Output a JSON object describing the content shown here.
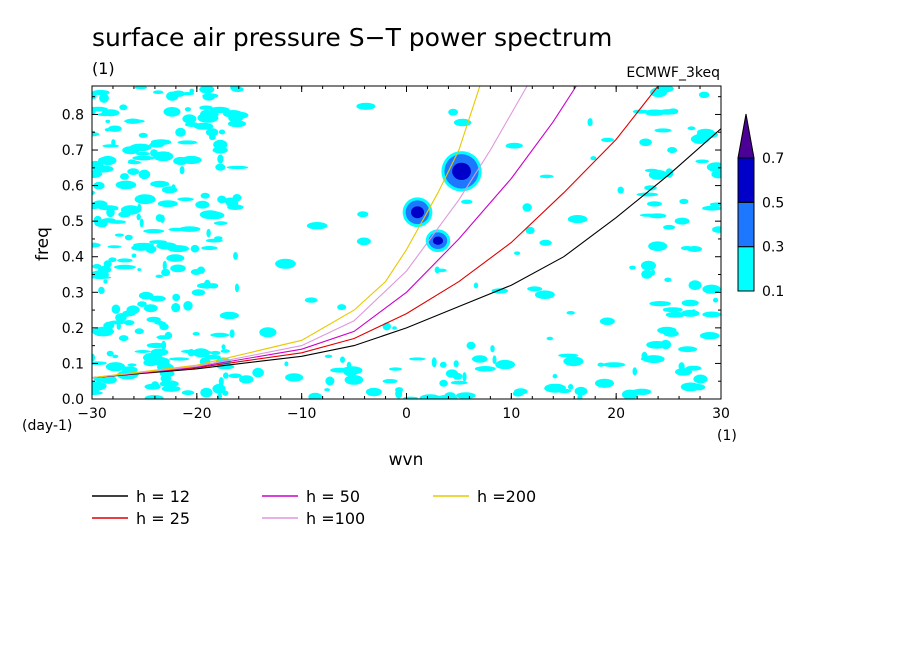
{
  "chart_data": {
    "type": "heatmap",
    "title": "surface air pressure S−T power spectrum",
    "subtitle_left": "(1)",
    "subtitle_right": "ECMWF_3keq",
    "xlabel": "wvn",
    "ylabel": "freq",
    "x_unit": "(1)",
    "y_unit": "(day-1)",
    "xlim": [
      -30,
      30
    ],
    "ylim": [
      0,
      0.88
    ],
    "xticks": [
      -30,
      -20,
      -10,
      0,
      10,
      20,
      30
    ],
    "xtick_labels": [
      "−30",
      "−20",
      "−10",
      "0",
      "10",
      "20",
      "30"
    ],
    "yticks": [
      0,
      0.1,
      0.2,
      0.3,
      0.4,
      0.5,
      0.6,
      0.7,
      0.8
    ],
    "ytick_labels": [
      "0.0",
      "0.1",
      "0.2",
      "0.3",
      "0.4",
      "0.5",
      "0.6",
      "0.7",
      "0.8"
    ],
    "colorbar": {
      "levels": [
        0.1,
        0.3,
        0.5,
        0.7
      ],
      "labels": [
        "0.1",
        "0.3",
        "0.5",
        "0.7"
      ],
      "colors": [
        "#00ffff",
        "#1e78ff",
        "#0000c8",
        "#4b0096"
      ]
    },
    "dispersion_curves": [
      {
        "name": "h = 12",
        "color": "#000000",
        "points": [
          [
            -30,
            0.06
          ],
          [
            -20,
            0.085
          ],
          [
            -10,
            0.12
          ],
          [
            -5,
            0.15
          ],
          [
            0,
            0.2
          ],
          [
            5,
            0.26
          ],
          [
            10,
            0.32
          ],
          [
            15,
            0.4
          ],
          [
            20,
            0.51
          ],
          [
            25,
            0.63
          ],
          [
            30,
            0.76
          ]
        ]
      },
      {
        "name": "h = 25",
        "color": "#e00000",
        "points": [
          [
            -30,
            0.06
          ],
          [
            -20,
            0.088
          ],
          [
            -10,
            0.13
          ],
          [
            -5,
            0.17
          ],
          [
            0,
            0.24
          ],
          [
            5,
            0.33
          ],
          [
            10,
            0.44
          ],
          [
            15,
            0.58
          ],
          [
            20,
            0.73
          ],
          [
            24,
            0.88
          ]
        ]
      },
      {
        "name": "h = 50",
        "color": "#cc00cc",
        "points": [
          [
            -30,
            0.06
          ],
          [
            -20,
            0.09
          ],
          [
            -10,
            0.14
          ],
          [
            -5,
            0.19
          ],
          [
            0,
            0.3
          ],
          [
            5,
            0.45
          ],
          [
            10,
            0.62
          ],
          [
            14,
            0.78
          ],
          [
            16.2,
            0.88
          ]
        ]
      },
      {
        "name": "h =100",
        "color": "#dd99dd",
        "points": [
          [
            -30,
            0.06
          ],
          [
            -20,
            0.092
          ],
          [
            -10,
            0.15
          ],
          [
            -5,
            0.22
          ],
          [
            0,
            0.36
          ],
          [
            5,
            0.56
          ],
          [
            8,
            0.7
          ],
          [
            11.5,
            0.88
          ]
        ]
      },
      {
        "name": "h =200",
        "color": "#e8c800",
        "points": [
          [
            -30,
            0.06
          ],
          [
            -20,
            0.095
          ],
          [
            -10,
            0.165
          ],
          [
            -5,
            0.25
          ],
          [
            -2,
            0.33
          ],
          [
            0,
            0.42
          ],
          [
            3,
            0.58
          ],
          [
            5,
            0.7
          ],
          [
            7,
            0.88
          ]
        ]
      }
    ],
    "high_power_regions": [
      {
        "x": [
          4,
          6.5
        ],
        "y": [
          0.6,
          0.68
        ],
        "level": 0.7
      },
      {
        "x": [
          0.3,
          1.8
        ],
        "y": [
          0.5,
          0.55
        ],
        "level": 0.5
      },
      {
        "x": [
          2.5,
          3.5
        ],
        "y": [
          0.43,
          0.46
        ],
        "level": 0.5
      }
    ],
    "legend": [
      "h = 12",
      "h = 25",
      "h = 50",
      "h =100",
      "h =200"
    ]
  }
}
